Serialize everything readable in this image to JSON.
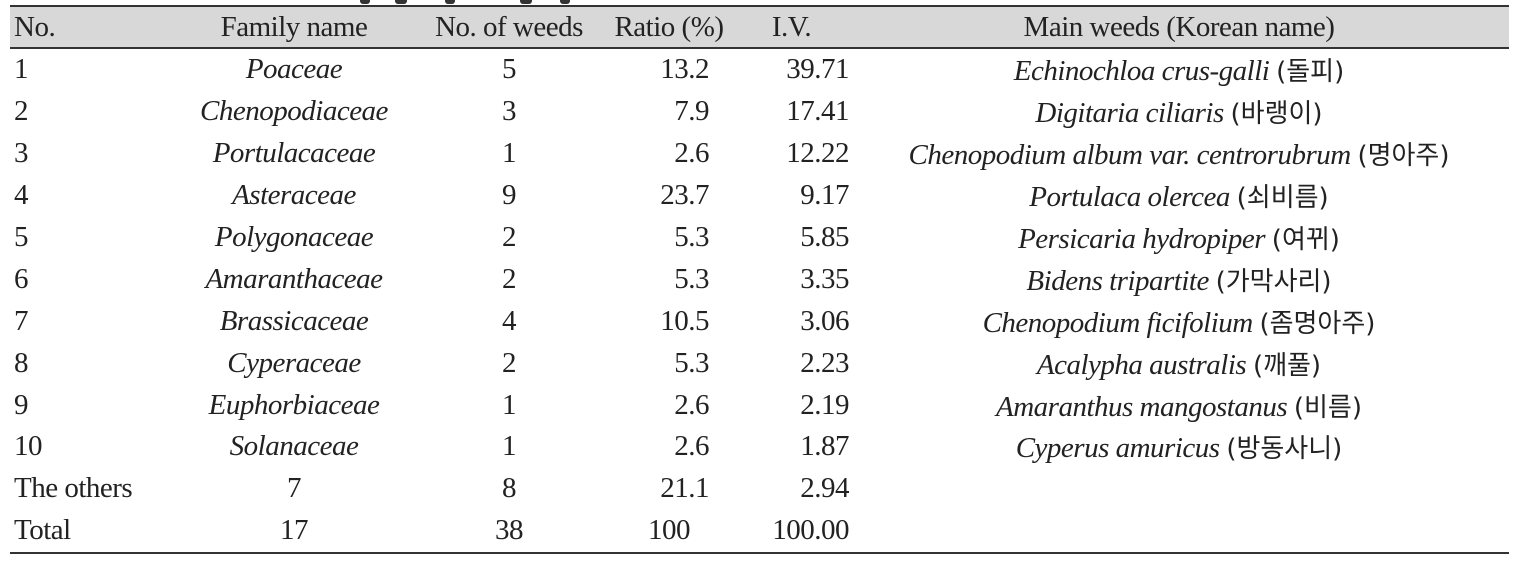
{
  "table": {
    "headers": {
      "no": "No.",
      "family": "Family name",
      "count": "No. of weeds",
      "ratio": "Ratio (%)",
      "iv": "I.V.",
      "main": "Main weeds (Korean name)"
    },
    "rows": [
      {
        "no": "1",
        "family": "Poaceae",
        "count": "5",
        "ratio": "13.2",
        "iv": "39.71",
        "main_sci": "Echinochloa crus-galli",
        "main_ko": "(돌피)"
      },
      {
        "no": "2",
        "family": "Chenopodiaceae",
        "count": "3",
        "ratio": "7.9",
        "iv": "17.41",
        "main_sci": "Digitaria ciliaris",
        "main_ko": "(바랭이)"
      },
      {
        "no": "3",
        "family": "Portulacaceae",
        "count": "1",
        "ratio": "2.6",
        "iv": "12.22",
        "main_sci": "Chenopodium album var. centrorubrum",
        "main_ko": "(명아주)"
      },
      {
        "no": "4",
        "family": "Asteraceae",
        "count": "9",
        "ratio": "23.7",
        "iv": "9.17",
        "main_sci": "Portulaca olercea",
        "main_ko": "(쇠비름)"
      },
      {
        "no": "5",
        "family": "Polygonaceae",
        "count": "2",
        "ratio": "5.3",
        "iv": "5.85",
        "main_sci": "Persicaria hydropiper",
        "main_ko": "(여뀌)"
      },
      {
        "no": "6",
        "family": "Amaranthaceae",
        "count": "2",
        "ratio": "5.3",
        "iv": "3.35",
        "main_sci": "Bidens tripartite",
        "main_ko": "(가막사리)"
      },
      {
        "no": "7",
        "family": "Brassicaceae",
        "count": "4",
        "ratio": "10.5",
        "iv": "3.06",
        "main_sci": "Chenopodium ficifolium",
        "main_ko": "(좀명아주)"
      },
      {
        "no": "8",
        "family": "Cyperaceae",
        "count": "2",
        "ratio": "5.3",
        "iv": "2.23",
        "main_sci": "Acalypha australis",
        "main_ko": "(깨풀)"
      },
      {
        "no": "9",
        "family": "Euphorbiaceae",
        "count": "1",
        "ratio": "2.6",
        "iv": "2.19",
        "main_sci": "Amaranthus mangostanus",
        "main_ko": "(비름)"
      },
      {
        "no": "10",
        "family": "Solanaceae",
        "count": "1",
        "ratio": "2.6",
        "iv": "1.87",
        "main_sci": "Cyperus amuricus",
        "main_ko": "(방동사니)"
      }
    ],
    "others": {
      "no": "The others",
      "family": "7",
      "count": "8",
      "ratio": "21.1",
      "iv": "2.94"
    },
    "total": {
      "no": "Total",
      "family": "17",
      "count": "38",
      "ratio": "100",
      "iv": "100.00"
    }
  }
}
